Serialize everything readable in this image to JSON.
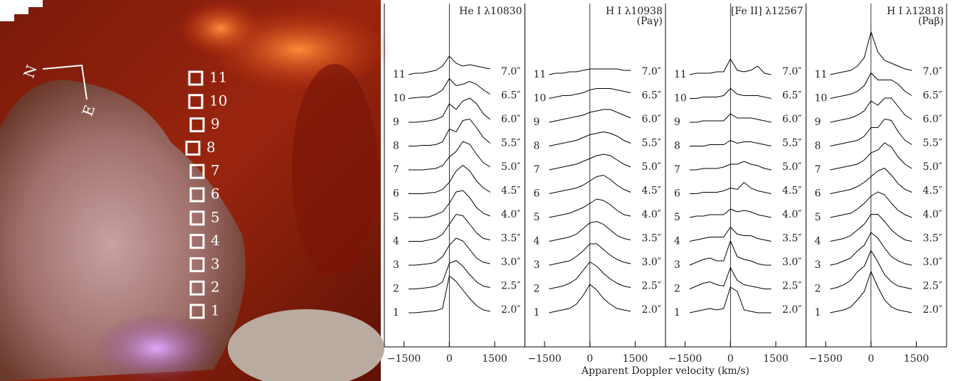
{
  "image": {
    "regions": [
      "1",
      "2",
      "3",
      "4",
      "5",
      "6",
      "7",
      "8",
      "9",
      "10",
      "11"
    ],
    "compass": {
      "north": "N",
      "east": "E"
    }
  },
  "figure": {
    "xlabel": "Apparent Doppler velocity (km/s)"
  },
  "chart_data": [
    {
      "type": "line",
      "title": "He I λ10830",
      "color": "#000000",
      "xlim": [
        -2150,
        2500
      ],
      "xticks": [
        {
          "value": -1500,
          "label": "−1500"
        },
        0,
        1500
      ],
      "vline": 0,
      "x": [
        -1350,
        -1125,
        -900,
        -675,
        -450,
        -225,
        0,
        225,
        450,
        675,
        900,
        1125,
        1350
      ],
      "series": [
        {
          "name": "1",
          "position": "2.0″",
          "values": [
            0,
            0,
            0.05,
            0.1,
            0.15,
            0.3,
            2.6,
            2.2,
            1.6,
            1.0,
            0.5,
            0.2,
            0.1
          ]
        },
        {
          "name": "2",
          "position": "2.5″",
          "values": [
            0,
            0,
            0.05,
            0.1,
            0.2,
            0.5,
            1.8,
            2.0,
            1.6,
            1.0,
            0.5,
            0.2,
            0.1
          ]
        },
        {
          "name": "3",
          "position": "3.0″",
          "values": [
            0,
            0,
            0.05,
            0.1,
            0.2,
            0.6,
            1.4,
            1.9,
            1.7,
            1.1,
            0.5,
            0.2,
            0.1
          ]
        },
        {
          "name": "4",
          "position": "3.5″",
          "values": [
            0,
            0,
            0,
            0.1,
            0.2,
            0.5,
            1.2,
            1.9,
            1.8,
            1.2,
            0.6,
            0.2,
            0.1
          ]
        },
        {
          "name": "5",
          "position": "4.0″",
          "values": [
            0,
            0,
            0,
            0.05,
            0.2,
            0.4,
            1.0,
            1.8,
            1.9,
            1.4,
            0.7,
            0.3,
            0.1
          ]
        },
        {
          "name": "6",
          "position": "4.5″",
          "values": [
            0,
            0,
            0,
            0.05,
            0.1,
            0.3,
            0.8,
            1.6,
            2.0,
            1.6,
            0.9,
            0.4,
            0.1
          ]
        },
        {
          "name": "7",
          "position": "5.0″",
          "values": [
            0,
            0,
            0,
            0.05,
            0.1,
            0.3,
            0.9,
            1.3,
            2.0,
            1.8,
            1.1,
            0.5,
            0.2
          ]
        },
        {
          "name": "8",
          "position": "5.5″",
          "values": [
            0,
            0,
            0.05,
            0.05,
            0.1,
            0.3,
            1.2,
            1.0,
            1.8,
            1.9,
            1.3,
            0.6,
            0.2
          ]
        },
        {
          "name": "9",
          "position": "6.0″",
          "values": [
            0,
            0,
            0.05,
            0.1,
            0.2,
            0.4,
            1.3,
            0.9,
            1.5,
            1.7,
            1.3,
            0.6,
            0.2
          ]
        },
        {
          "name": "10",
          "position": "6.5″",
          "values": [
            0,
            0.05,
            0.1,
            0.1,
            0.3,
            0.6,
            1.4,
            0.9,
            1.0,
            1.2,
            1.0,
            0.6,
            0.3
          ]
        },
        {
          "name": "11",
          "position": "7.0″",
          "values": [
            0,
            0.1,
            0.1,
            0.2,
            0.3,
            0.6,
            1.3,
            0.8,
            0.6,
            0.7,
            0.6,
            0.5,
            0.4
          ]
        }
      ]
    },
    {
      "type": "line",
      "title": "H I λ10938",
      "subtitle": "(Paγ)",
      "color": "#000000",
      "xlim": [
        -2150,
        2500
      ],
      "xticks": [
        {
          "value": -1500,
          "label": "−1500"
        },
        0,
        1500
      ],
      "vline": 0,
      "x": [
        -1350,
        -1125,
        -900,
        -675,
        -450,
        -225,
        0,
        225,
        450,
        675,
        900,
        1125,
        1350
      ],
      "series": [
        {
          "name": "1",
          "position": "2.0″",
          "values": [
            0,
            0.1,
            0.2,
            0.3,
            0.6,
            1.2,
            2.0,
            1.6,
            1.0,
            0.6,
            0.3,
            0.2,
            0.1
          ]
        },
        {
          "name": "2",
          "position": "2.5″",
          "values": [
            0,
            0.1,
            0.2,
            0.4,
            0.7,
            1.3,
            1.9,
            1.6,
            1.1,
            0.7,
            0.4,
            0.2,
            0.1
          ]
        },
        {
          "name": "3",
          "position": "3.0″",
          "values": [
            0,
            0.1,
            0.2,
            0.3,
            0.6,
            1.0,
            1.5,
            1.5,
            1.1,
            0.7,
            0.4,
            0.2,
            0.1
          ]
        },
        {
          "name": "4",
          "position": "3.5″",
          "values": [
            0,
            0.1,
            0.2,
            0.3,
            0.5,
            0.9,
            1.3,
            1.4,
            1.2,
            0.8,
            0.4,
            0.2,
            0.1
          ]
        },
        {
          "name": "5",
          "position": "4.0″",
          "values": [
            0,
            0.1,
            0.2,
            0.3,
            0.5,
            0.7,
            1.0,
            1.3,
            1.2,
            0.9,
            0.5,
            0.2,
            0.1
          ]
        },
        {
          "name": "6",
          "position": "4.5″",
          "values": [
            0,
            0.1,
            0.2,
            0.3,
            0.4,
            0.6,
            0.9,
            1.2,
            1.3,
            1.0,
            0.6,
            0.3,
            0.1
          ]
        },
        {
          "name": "7",
          "position": "5.0″",
          "values": [
            0,
            0.1,
            0.2,
            0.3,
            0.4,
            0.6,
            0.8,
            1.0,
            1.1,
            1.0,
            0.7,
            0.4,
            0.2
          ]
        },
        {
          "name": "8",
          "position": "5.5″",
          "values": [
            0,
            0.1,
            0.2,
            0.3,
            0.4,
            0.6,
            0.8,
            0.9,
            1.0,
            0.9,
            0.7,
            0.4,
            0.2
          ]
        },
        {
          "name": "9",
          "position": "6.0″",
          "values": [
            0,
            0.1,
            0.2,
            0.3,
            0.4,
            0.5,
            0.7,
            0.8,
            0.9,
            0.9,
            0.7,
            0.5,
            0.3
          ]
        },
        {
          "name": "10",
          "position": "6.5″",
          "values": [
            0,
            0.1,
            0.2,
            0.2,
            0.3,
            0.4,
            0.6,
            0.7,
            0.7,
            0.7,
            0.6,
            0.5,
            0.4
          ]
        },
        {
          "name": "11",
          "position": "7.0″",
          "values": [
            0,
            0.1,
            0.1,
            0.2,
            0.2,
            0.3,
            0.4,
            0.4,
            0.4,
            0.4,
            0.4,
            0.3,
            0.3
          ]
        }
      ]
    },
    {
      "type": "line",
      "title": "[Fe II] λ12567",
      "color": "#000000",
      "xlim": [
        -2150,
        2500
      ],
      "xticks": [
        {
          "value": -1500,
          "label": "−1500"
        },
        0,
        1500
      ],
      "vline": 0,
      "x": [
        -1350,
        -1125,
        -900,
        -675,
        -450,
        -225,
        0,
        225,
        450,
        675,
        900,
        1125,
        1350
      ],
      "series": [
        {
          "name": "1",
          "position": "2.0″",
          "values": [
            0,
            0.1,
            0.2,
            0.3,
            0.2,
            0.3,
            1.8,
            1.5,
            0.2,
            0.1,
            0,
            0,
            0
          ]
        },
        {
          "name": "2",
          "position": "2.5″",
          "values": [
            0,
            0.2,
            0.4,
            0.5,
            0.3,
            0.2,
            1.5,
            0.6,
            0.3,
            0.2,
            0.1,
            0,
            0
          ]
        },
        {
          "name": "3",
          "position": "3.0″",
          "values": [
            0,
            0.2,
            0.4,
            0.5,
            0.3,
            0.3,
            1.7,
            0.6,
            0.4,
            0.3,
            0.1,
            0,
            0
          ]
        },
        {
          "name": "4",
          "position": "3.5″",
          "values": [
            0,
            0.1,
            0.2,
            0.3,
            0.3,
            0.3,
            1.0,
            0.5,
            0.4,
            0.4,
            0.2,
            0.1,
            0
          ]
        },
        {
          "name": "5",
          "position": "4.0″",
          "values": [
            0,
            0.1,
            0.1,
            0.2,
            0.2,
            0.2,
            0.6,
            0.4,
            0.5,
            0.4,
            0.2,
            0.1,
            0
          ]
        },
        {
          "name": "6",
          "position": "4.5″",
          "values": [
            0,
            0,
            0.1,
            0.1,
            0.1,
            0.2,
            0.4,
            0.3,
            0.8,
            0.4,
            0.2,
            0.1,
            0
          ]
        },
        {
          "name": "7",
          "position": "5.0″",
          "values": [
            0,
            0,
            0.1,
            0.1,
            0.1,
            0.2,
            0.4,
            0.4,
            0.6,
            0.4,
            0.3,
            0.1,
            0
          ]
        },
        {
          "name": "8",
          "position": "5.5″",
          "values": [
            0,
            0,
            0,
            0.1,
            0.1,
            0.1,
            0.4,
            0.2,
            0.3,
            0.3,
            0.2,
            0.1,
            0
          ]
        },
        {
          "name": "9",
          "position": "6.0″",
          "values": [
            0,
            0,
            0.1,
            0.1,
            0.1,
            0.1,
            0.6,
            0.3,
            0.3,
            0.3,
            0.2,
            0.1,
            0
          ]
        },
        {
          "name": "10",
          "position": "6.5″",
          "values": [
            0,
            0,
            0.1,
            0.1,
            0.1,
            0.2,
            0.7,
            0.3,
            0.2,
            0.2,
            0.2,
            0.1,
            0
          ]
        },
        {
          "name": "11",
          "position": "7.0″",
          "values": [
            0,
            0.1,
            0.1,
            0.1,
            0.2,
            0.2,
            1.1,
            0.3,
            0.2,
            0.3,
            0.6,
            0.1,
            0
          ]
        }
      ]
    },
    {
      "type": "line",
      "title": "H I λ12818",
      "subtitle": "(Paβ)",
      "color": "#000000",
      "xlim": [
        -2150,
        2500
      ],
      "xticks": [
        {
          "value": -1500,
          "label": "−1500"
        },
        0,
        1500
      ],
      "vline": 0,
      "x": [
        -1350,
        -1125,
        -900,
        -675,
        -450,
        -225,
        0,
        225,
        450,
        675,
        900,
        1125,
        1350
      ],
      "series": [
        {
          "name": "1",
          "position": "2.0″",
          "values": [
            0,
            0.1,
            0.2,
            0.4,
            0.9,
            1.5,
            2.9,
            1.8,
            0.9,
            0.4,
            0.2,
            0.1,
            0
          ]
        },
        {
          "name": "2",
          "position": "2.5″",
          "values": [
            0,
            0.1,
            0.3,
            0.6,
            1.2,
            1.6,
            2.7,
            1.9,
            1.0,
            0.5,
            0.2,
            0.1,
            0
          ]
        },
        {
          "name": "3",
          "position": "3.0″",
          "values": [
            0,
            0.1,
            0.3,
            0.5,
            1.0,
            1.4,
            2.3,
            1.9,
            1.2,
            0.6,
            0.3,
            0.1,
            0
          ]
        },
        {
          "name": "4",
          "position": "3.5″",
          "values": [
            0,
            0.1,
            0.2,
            0.4,
            0.8,
            1.2,
            1.9,
            1.9,
            1.4,
            0.8,
            0.4,
            0.1,
            0
          ]
        },
        {
          "name": "5",
          "position": "4.0″",
          "values": [
            0,
            0.1,
            0.2,
            0.3,
            0.6,
            1.0,
            1.5,
            1.8,
            1.6,
            1.0,
            0.5,
            0.2,
            0
          ]
        },
        {
          "name": "6",
          "position": "4.5″",
          "values": [
            0,
            0.1,
            0.2,
            0.3,
            0.5,
            0.8,
            1.2,
            1.6,
            1.8,
            1.3,
            0.7,
            0.3,
            0.1
          ]
        },
        {
          "name": "7",
          "position": "5.0″",
          "values": [
            0,
            0.1,
            0.2,
            0.3,
            0.4,
            0.7,
            1.2,
            1.4,
            1.9,
            1.6,
            0.9,
            0.4,
            0.1
          ]
        },
        {
          "name": "8",
          "position": "5.5″",
          "values": [
            0,
            0.1,
            0.2,
            0.3,
            0.4,
            0.7,
            1.3,
            1.3,
            1.9,
            1.8,
            1.0,
            0.4,
            0.1
          ]
        },
        {
          "name": "9",
          "position": "6.0″",
          "values": [
            0,
            0.1,
            0.2,
            0.3,
            0.5,
            0.8,
            1.5,
            1.2,
            1.7,
            1.7,
            1.1,
            0.5,
            0.2
          ]
        },
        {
          "name": "10",
          "position": "6.5″",
          "values": [
            0,
            0.1,
            0.2,
            0.3,
            0.5,
            0.9,
            1.8,
            1.3,
            1.3,
            1.3,
            1.0,
            0.5,
            0.2
          ]
        },
        {
          "name": "11",
          "position": "7.0″",
          "values": [
            0,
            0.1,
            0.2,
            0.3,
            0.6,
            1.2,
            3.0,
            1.6,
            1.0,
            0.8,
            0.6,
            0.4,
            0.3
          ]
        }
      ]
    }
  ]
}
